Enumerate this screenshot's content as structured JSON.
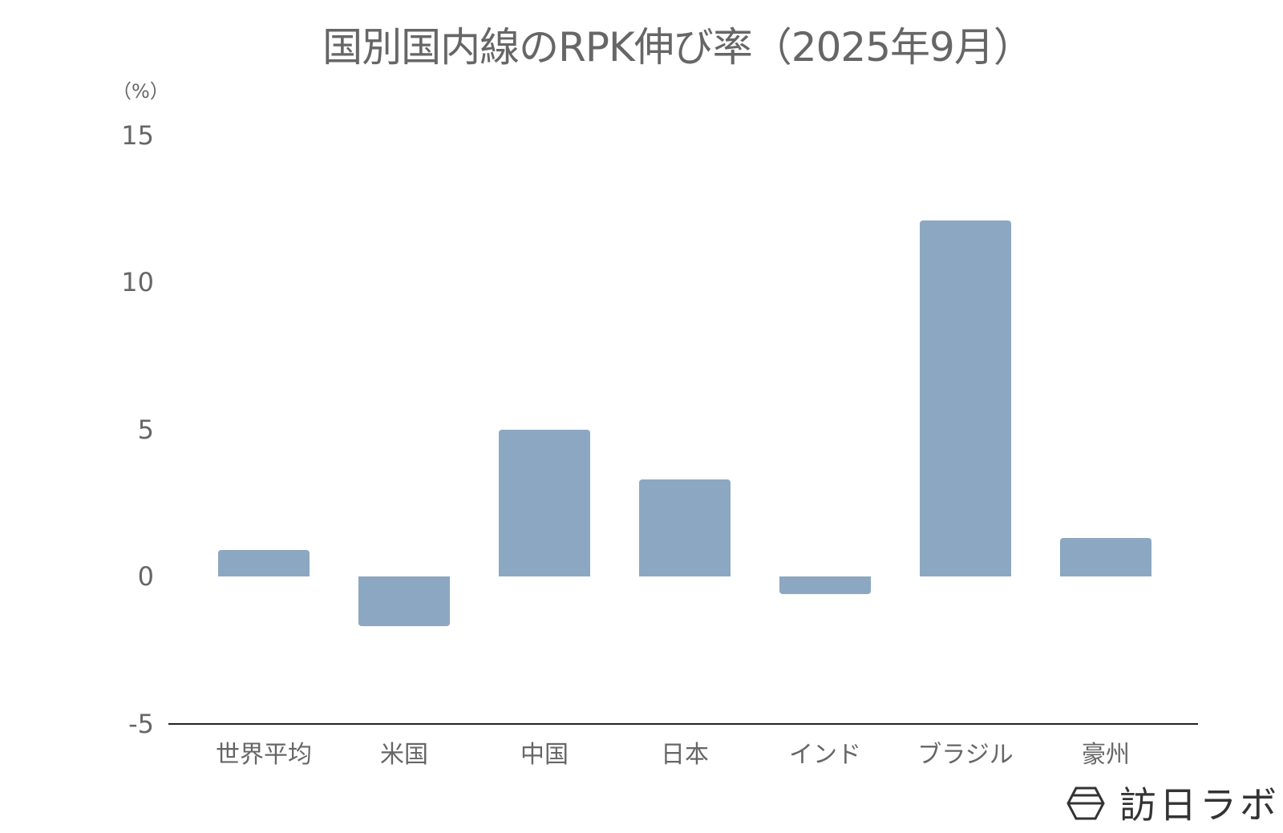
{
  "chart_data": {
    "type": "bar",
    "title": "国別国内線のRPK伸び率（2025年9月）",
    "xlabel": "",
    "ylabel": "（%）",
    "categories": [
      "世界平均",
      "米国",
      "中国",
      "日本",
      "インド",
      "ブラジル",
      "豪州"
    ],
    "values": [
      0.9,
      -1.7,
      5.0,
      3.3,
      -0.6,
      12.1,
      1.3
    ],
    "ylim": [
      -5,
      15
    ],
    "yticks": [
      15,
      10,
      5,
      0,
      -5
    ],
    "grid": false,
    "legend": null,
    "bar_color": "#8CA7C2"
  },
  "watermark": {
    "icon": "hexagon-logo-icon",
    "text": "訪日ラボ"
  }
}
